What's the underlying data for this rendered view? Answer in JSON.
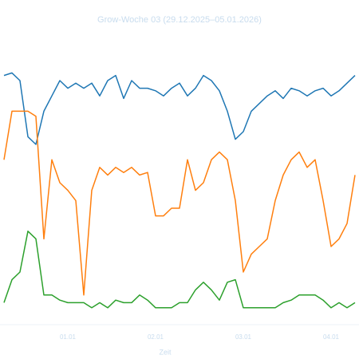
{
  "chart_data": {
    "type": "line",
    "title": "Grow-Woche 03 (29.12.2025–05.01.2026)",
    "x_label": "Zeit",
    "categories": [
      null,
      null,
      null,
      null,
      null,
      null,
      null,
      null,
      "01.01",
      null,
      null,
      null,
      null,
      null,
      null,
      null,
      null,
      null,
      null,
      "02.01",
      null,
      null,
      null,
      null,
      null,
      null,
      null,
      null,
      null,
      null,
      "03.01",
      null,
      null,
      null,
      null,
      null,
      null,
      null,
      null,
      null,
      null,
      "04.01",
      null,
      null,
      null
    ],
    "ylim": [
      0,
      100
    ],
    "series": [
      {
        "color": "#1f77b4",
        "values": [
          97,
          98,
          95,
          73,
          70,
          83,
          89,
          95,
          92,
          94,
          92,
          94,
          89,
          95,
          97,
          88,
          95,
          92,
          92,
          91,
          89,
          92,
          94,
          89,
          92,
          97,
          95,
          91,
          83,
          72,
          75,
          83,
          86,
          89,
          91,
          88,
          92,
          91,
          89,
          91,
          92,
          89,
          91,
          94,
          97
        ]
      },
      {
        "color": "#ff7f0e",
        "values": [
          64,
          83,
          83,
          83,
          81,
          33,
          64,
          55,
          52,
          48,
          11,
          52,
          61,
          58,
          61,
          59,
          61,
          58,
          59,
          42,
          42,
          45,
          45,
          64,
          52,
          55,
          64,
          67,
          64,
          48,
          20,
          27,
          30,
          33,
          48,
          58,
          64,
          67,
          61,
          64,
          48,
          30,
          33,
          39,
          58
        ]
      },
      {
        "color": "#2ca02c",
        "values": [
          8,
          17,
          20,
          36,
          33,
          11,
          11,
          9,
          8,
          8,
          8,
          6,
          8,
          6,
          9,
          8,
          8,
          11,
          9,
          6,
          6,
          6,
          8,
          8,
          13,
          16,
          13,
          9,
          16,
          17,
          6,
          6,
          6,
          6,
          6,
          8,
          9,
          11,
          11,
          11,
          9,
          6,
          8,
          6,
          8
        ]
      }
    ]
  }
}
